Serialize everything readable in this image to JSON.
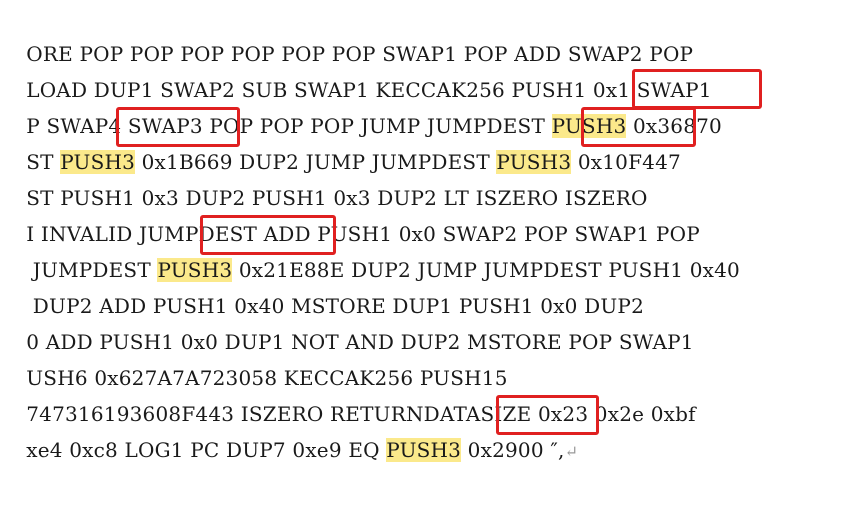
{
  "document": {
    "lines": [
      {
        "t1": "ORE POP POP POP POP POP POP SWAP1 POP ADD SWAP2 POP"
      },
      {
        "t1": "LOAD DUP1 SWAP2 SUB SWAP1 KECCAK256 PUSH1 0x1 SWAP1"
      },
      {
        "t1": "P SWAP4 SWAP3 POP POP POP JUMP JUMPDEST ",
        "hl1": "PUSH3",
        "t2": " ",
        "v1": "0x36870"
      },
      {
        "t1": "ST ",
        "hl1": "PUSH3",
        "t2": " ",
        "v1": "0x1B669",
        "t3": " DUP2 JUMP JUMPDEST ",
        "hl2": "PUSH3",
        "t4": " ",
        "v2": "0x10F447"
      },
      {
        "t1": "ST PUSH1 0x3 DUP2 PUSH1 0x3 DUP2 LT ISZERO ISZERO"
      },
      {
        "t1": "I INVALID JUMPDEST ADD PUSH1 0x0 SWAP2 POP SWAP1 POP"
      },
      {
        "t1": " JUMPDEST ",
        "hl1": "PUSH3",
        "t2": " ",
        "v1": "0x21E88E",
        "t3": " DUP2 JUMP JUMPDEST PUSH1 0x40"
      },
      {
        "t1": " DUP2 ADD PUSH1 0x40 MSTORE DUP1 PUSH1 0x0 DUP2"
      },
      {
        "t1": "0 ADD PUSH1 0x0 DUP1 NOT AND DUP2 MSTORE POP SWAP1"
      },
      {
        "t1": "USH6 0x627A7A723058 KECCAK256 PUSH15"
      },
      {
        "t1": "747316193608F443 ISZERO RETURNDATASIZE 0x23 0x2e 0xbf"
      },
      {
        "t1": "xe4 0xc8 LOG1 PC DUP7 0xe9 EQ ",
        "hl1": "PUSH3",
        "t2": " ",
        "v1": "0x2900",
        "t3": " ″,",
        "mark": "↵"
      }
    ]
  },
  "colors": {
    "highlight": "#fbe98b",
    "box": "#e02020",
    "text": "#1a1a1a"
  }
}
